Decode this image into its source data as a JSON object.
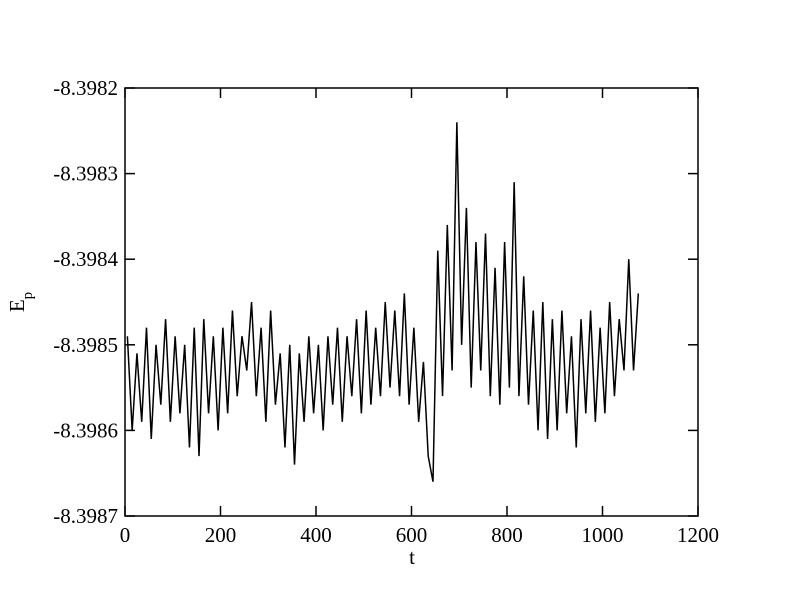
{
  "chart_data": {
    "type": "line",
    "x_label": "t",
    "y_label": "E",
    "y_label_sub": "p",
    "xlim": [
      0,
      1200
    ],
    "xticks": [
      0,
      200,
      400,
      600,
      800,
      1000,
      1200
    ],
    "ylim": [
      -8.3987,
      -8.3982
    ],
    "yticks": [
      -8.3987,
      -8.3986,
      -8.3985,
      -8.3984,
      -8.3983,
      -8.3982
    ],
    "color": "#000000",
    "x": [
      5,
      15,
      25,
      35,
      45,
      55,
      65,
      75,
      85,
      95,
      105,
      115,
      125,
      135,
      145,
      155,
      165,
      175,
      185,
      195,
      205,
      215,
      225,
      235,
      245,
      255,
      265,
      275,
      285,
      295,
      305,
      315,
      325,
      335,
      345,
      355,
      365,
      375,
      385,
      395,
      405,
      415,
      425,
      435,
      445,
      455,
      465,
      475,
      485,
      495,
      505,
      515,
      525,
      535,
      545,
      555,
      565,
      575,
      585,
      595,
      605,
      615,
      625,
      635,
      645,
      655,
      665,
      675,
      685,
      695,
      705,
      715,
      725,
      735,
      745,
      755,
      765,
      775,
      785,
      795,
      805,
      815,
      825,
      835,
      845,
      855,
      865,
      875,
      885,
      895,
      905,
      915,
      925,
      935,
      945,
      955,
      965,
      975,
      985,
      995,
      1005,
      1015,
      1025,
      1035,
      1045,
      1055,
      1065,
      1075
    ],
    "values": [
      -8.39849,
      -8.3986,
      -8.39851,
      -8.39859,
      -8.39848,
      -8.39861,
      -8.3985,
      -8.39857,
      -8.39847,
      -8.39859,
      -8.39849,
      -8.39858,
      -8.3985,
      -8.39862,
      -8.39848,
      -8.39863,
      -8.39847,
      -8.39858,
      -8.39849,
      -8.3986,
      -8.39848,
      -8.39858,
      -8.39846,
      -8.39856,
      -8.39849,
      -8.39853,
      -8.39845,
      -8.39856,
      -8.39848,
      -8.39859,
      -8.39846,
      -8.39857,
      -8.39851,
      -8.39862,
      -8.3985,
      -8.39864,
      -8.39851,
      -8.39859,
      -8.39849,
      -8.39858,
      -8.3985,
      -8.3986,
      -8.39849,
      -8.39857,
      -8.39848,
      -8.39859,
      -8.39849,
      -8.39856,
      -8.39847,
      -8.39858,
      -8.39846,
      -8.39857,
      -8.39848,
      -8.39856,
      -8.39845,
      -8.39855,
      -8.39846,
      -8.39856,
      -8.39844,
      -8.39857,
      -8.39848,
      -8.39859,
      -8.39852,
      -8.39863,
      -8.39866,
      -8.39839,
      -8.39856,
      -8.39836,
      -8.39853,
      -8.39824,
      -8.3985,
      -8.39834,
      -8.39855,
      -8.39838,
      -8.39853,
      -8.39837,
      -8.39856,
      -8.39841,
      -8.39857,
      -8.39838,
      -8.39855,
      -8.39831,
      -8.39856,
      -8.39842,
      -8.39857,
      -8.39846,
      -8.3986,
      -8.39845,
      -8.39861,
      -8.39847,
      -8.3986,
      -8.39846,
      -8.39858,
      -8.39849,
      -8.39862,
      -8.39847,
      -8.39858,
      -8.39846,
      -8.39859,
      -8.39848,
      -8.39858,
      -8.39845,
      -8.39856,
      -8.39847,
      -8.39853,
      -8.3984,
      -8.39853,
      -8.39844
    ]
  }
}
